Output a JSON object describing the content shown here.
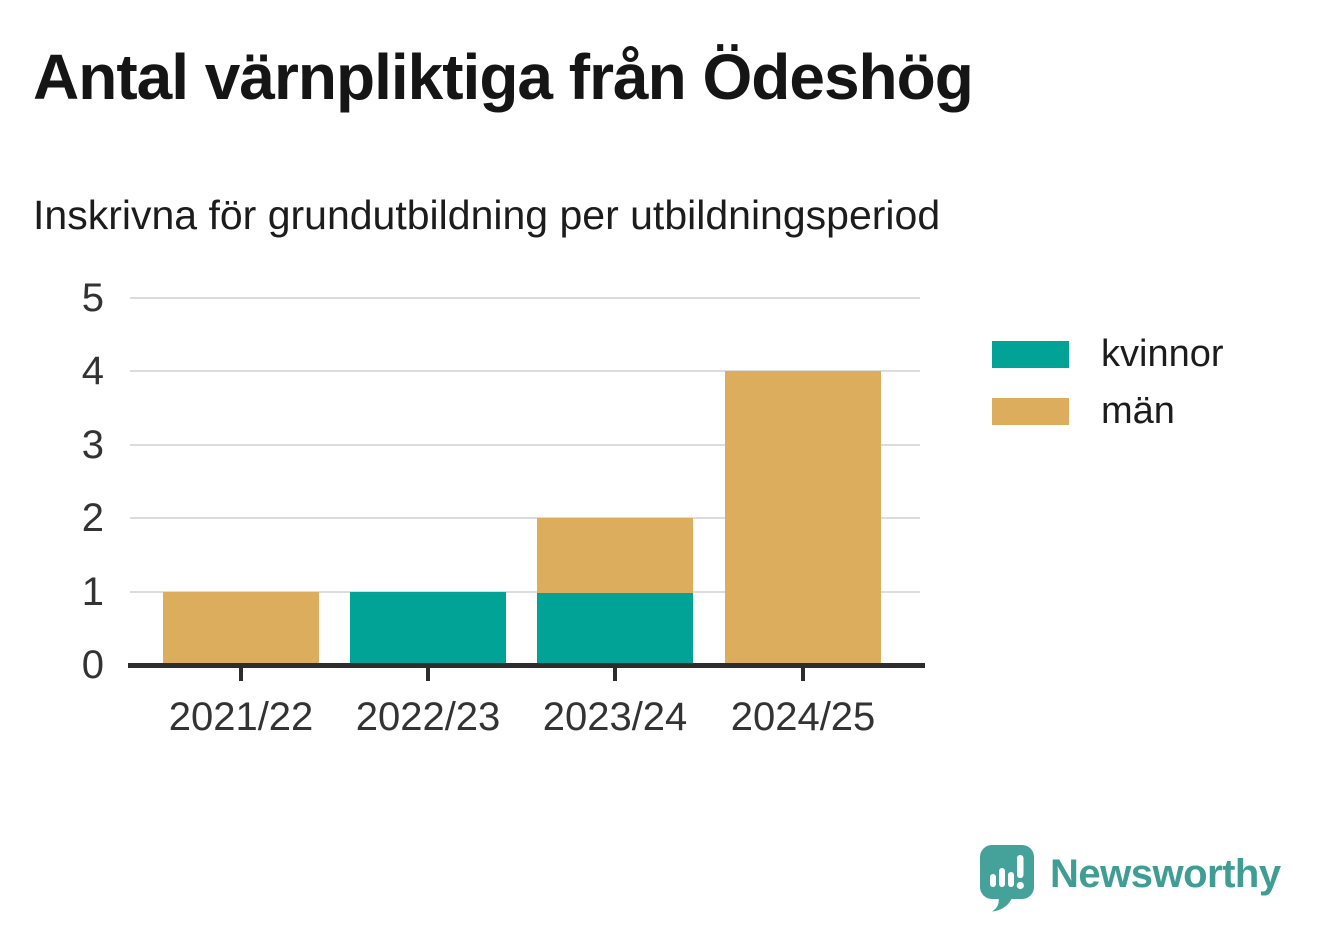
{
  "header": {
    "title": "Antal värnpliktiga från Ödeshög",
    "subtitle": "Inskrivna för grundutbildning per utbildningsperiod"
  },
  "chart_data": {
    "type": "bar",
    "stacked": true,
    "title": "Antal värnpliktiga från Ödeshög",
    "subtitle": "Inskrivna för grundutbildning per utbildningsperiod",
    "categories": [
      "2021/22",
      "2022/23",
      "2023/24",
      "2024/25"
    ],
    "series": [
      {
        "name": "kvinnor",
        "color": "#00a396",
        "values": [
          0,
          1,
          1,
          0
        ]
      },
      {
        "name": "män",
        "color": "#dcad5c",
        "values": [
          1,
          0,
          1,
          4
        ]
      }
    ],
    "totals": [
      1,
      1,
      2,
      4
    ],
    "ylim": [
      0,
      5
    ],
    "yticks": [
      0,
      1,
      2,
      3,
      4,
      5
    ],
    "xlabel": "",
    "ylabel": "",
    "grid": true,
    "gridline_color": "#dcdcdc",
    "axis_color": "#2d2d2d",
    "legend_position": "right"
  },
  "branding": {
    "logo_text": "Newsworthy",
    "logo_icon": "newsworthy-speech-bubble-chart-icon",
    "logo_color": "#3f9d94",
    "icon_color": "#45a29a"
  }
}
